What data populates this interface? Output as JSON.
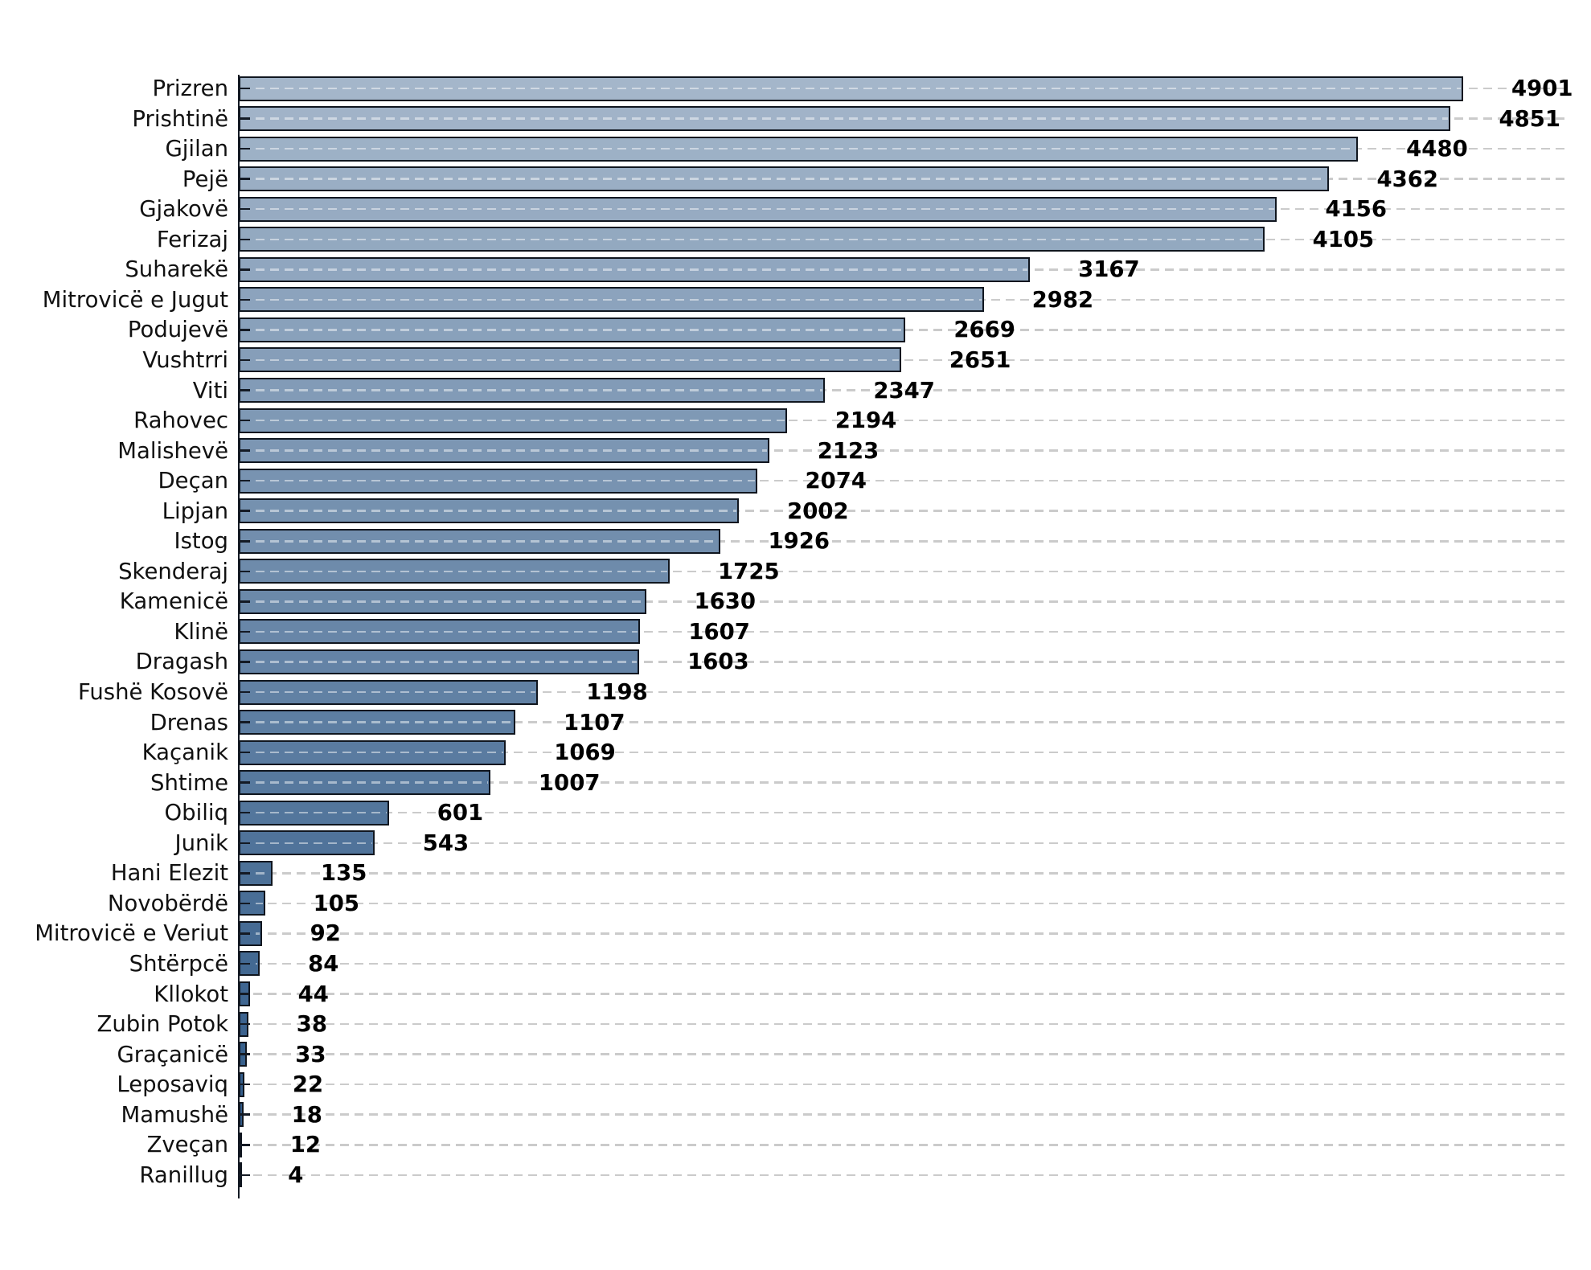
{
  "chart_data": {
    "type": "bar",
    "orientation": "horizontal",
    "title": "",
    "xlabel": "",
    "ylabel": "",
    "categories": [
      "Prizren",
      "Prishtinë",
      "Gjilan",
      "Pejë",
      "Gjakovë",
      "Ferizaj",
      "Suharekë",
      "Mitrovicë e Jugut",
      "Podujevë",
      "Vushtrri",
      "Viti",
      "Rahovec",
      "Malishevë",
      "Deçan",
      "Lipjan",
      "Istog",
      "Skenderaj",
      "Kamenicë",
      "Klinë",
      "Dragash",
      "Fushë Kosovë",
      "Drenas",
      "Kaçanik",
      "Shtime",
      "Obiliq",
      "Junik",
      "Hani Elezit",
      "Novobërdë",
      "Mitrovicë e Veriut",
      "Shtërpcë",
      "Kllokot",
      "Zubin Potok",
      "Graçanicë",
      "Leposaviq",
      "Mamushë",
      "Zveçan",
      "Ranillug"
    ],
    "values": [
      4901,
      4851,
      4480,
      4362,
      4156,
      4105,
      3167,
      2982,
      2669,
      2651,
      2347,
      2194,
      2123,
      2074,
      2002,
      1926,
      1725,
      1630,
      1607,
      1603,
      1198,
      1107,
      1069,
      1007,
      601,
      543,
      135,
      105,
      92,
      84,
      44,
      38,
      33,
      22,
      18,
      12,
      4
    ],
    "value_labels_shown": true,
    "xlim": [
      0,
      5300
    ],
    "grid": "horizontal dashed",
    "legend": "none",
    "colors": {
      "bar_fill_start": "#a4b6ca",
      "bar_fill_end": "#2b5685",
      "bar_edge": "#10161f",
      "gridline": "#cbcbcb",
      "axis": "#141a24",
      "text": "#111111",
      "value_text": "#000000",
      "background": "#ffffff"
    }
  }
}
